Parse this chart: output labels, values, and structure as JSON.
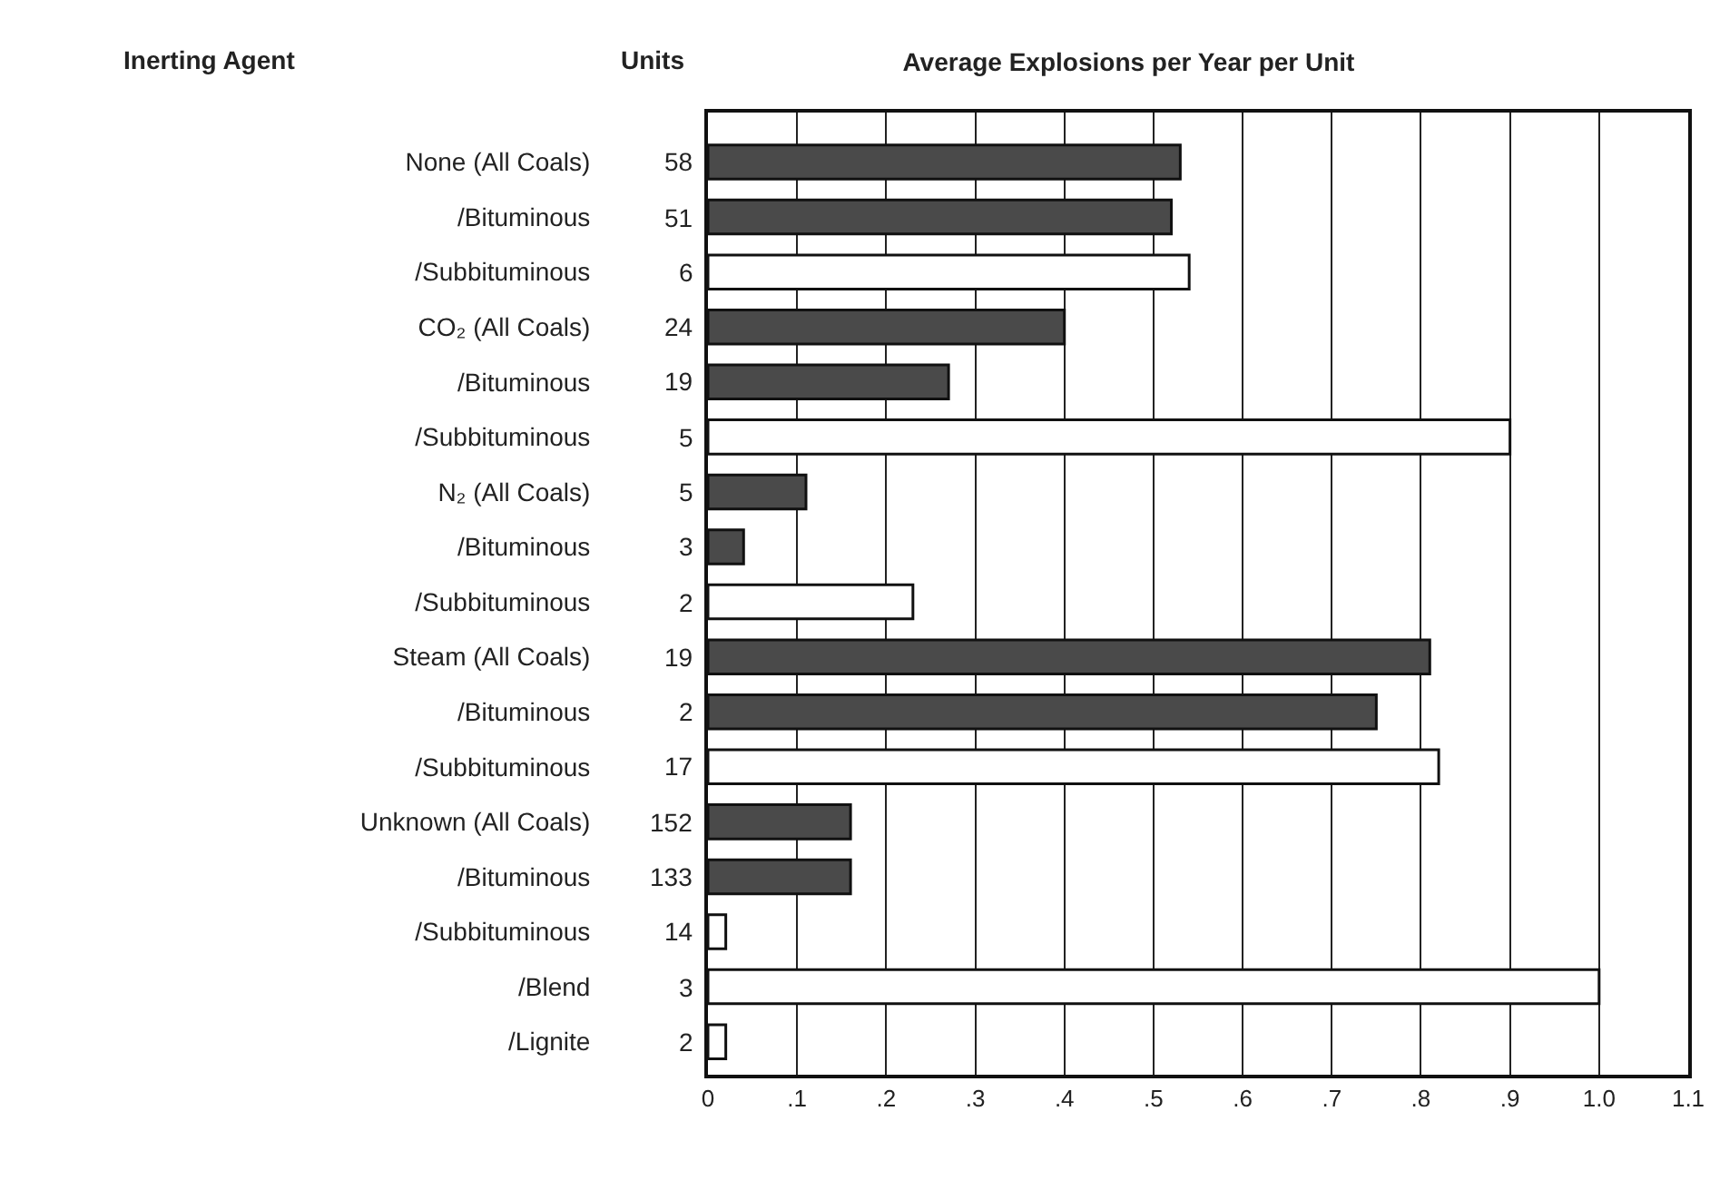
{
  "chart_data": {
    "type": "bar",
    "orientation": "horizontal",
    "title": "Average Explosions per Year per Unit",
    "ylabel": "Inerting Agent",
    "categories": [
      "None (All Coals)",
      "/Bituminous",
      "/Subbituminous",
      "CO₂ (All Coals)",
      "/Bituminous",
      "/Subbituminous",
      "N₂ (All Coals)",
      "/Bituminous",
      "/Subbituminous",
      "Steam (All Coals)",
      "/Bituminous",
      "/Subbituminous",
      "Unknown (All Coals)",
      "/Bituminous",
      "/Subbituminous",
      "/Blend",
      "/Lignite"
    ],
    "values": [
      0.53,
      0.52,
      0.54,
      0.4,
      0.27,
      0.9,
      0.11,
      0.04,
      0.23,
      0.81,
      0.75,
      0.82,
      0.16,
      0.16,
      0.02,
      1.0,
      0.02
    ],
    "colors": [
      "#4a4a4a",
      "#4a4a4a",
      "#ffffff",
      "#4a4a4a",
      "#4a4a4a",
      "#ffffff",
      "#4a4a4a",
      "#4a4a4a",
      "#ffffff",
      "#4a4a4a",
      "#4a4a4a",
      "#ffffff",
      "#4a4a4a",
      "#4a4a4a",
      "#ffffff",
      "#ffffff",
      "#ffffff"
    ],
    "xlim": [
      0,
      1.1
    ],
    "xticks": [
      0,
      {
        "value": 0.1,
        "label": ".1"
      },
      {
        "value": 0.2,
        "label": ".2"
      },
      {
        "value": 0.3,
        "label": ".3"
      },
      {
        "value": 0.4,
        "label": ".4"
      },
      {
        "value": 0.5,
        "label": ".5"
      },
      {
        "value": 0.6,
        "label": ".6"
      },
      {
        "value": 0.7,
        "label": ".7"
      },
      {
        "value": 0.8,
        "label": ".8"
      },
      {
        "value": 0.9,
        "label": ".9"
      },
      {
        "value": 1.0,
        "label": "1.0"
      },
      {
        "value": 1.1,
        "label": "1.1"
      }
    ],
    "annotations": [
      "Units",
      "58",
      "51",
      "6",
      "24",
      "19",
      "5",
      "5",
      "3",
      "2",
      "19",
      "2",
      "17",
      "152",
      "133",
      "14",
      "3",
      "2"
    ],
    "grid": "x",
    "legend": false
  }
}
